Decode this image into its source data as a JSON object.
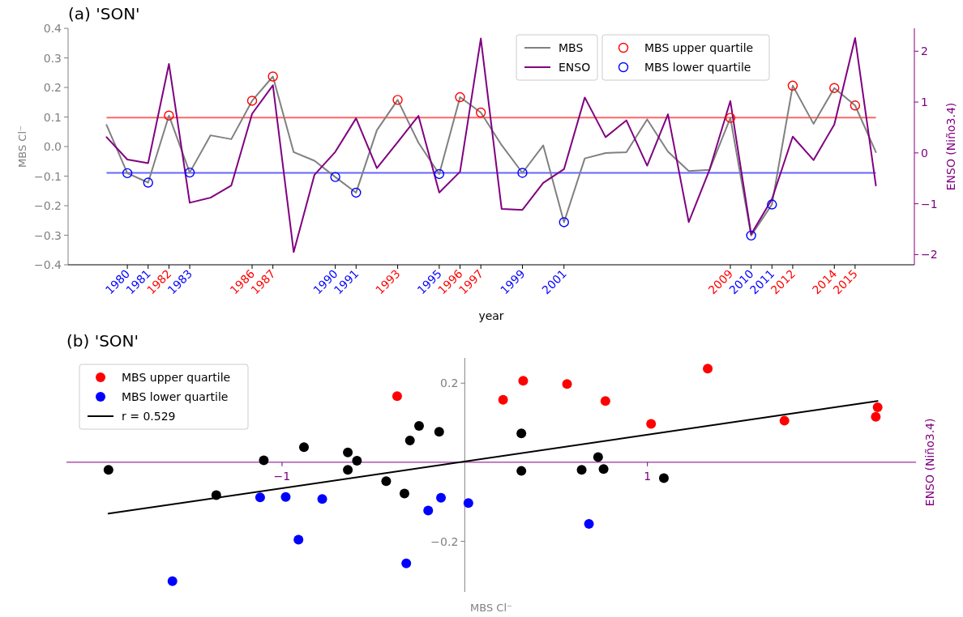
{
  "chart_data": [
    {
      "type": "line",
      "title": "(a) 'SON'",
      "xlabel": "year",
      "ylabel": "MBS Cl⁻",
      "y2label": "ENSO (Niño3.4)",
      "legend": "top",
      "x": [
        1979,
        1980,
        1981,
        1982,
        1983,
        1984,
        1985,
        1986,
        1987,
        1988,
        1989,
        1990,
        1991,
        1992,
        1993,
        1994,
        1995,
        1996,
        1997,
        1998,
        1999,
        2000,
        2001,
        2002,
        2003,
        2004,
        2005,
        2006,
        2007,
        2008,
        2009,
        2010,
        2011,
        2012,
        2013,
        2014,
        2015,
        2016
      ],
      "xlim": [
        1977.15,
        2017.85
      ],
      "xticks": [
        1980,
        1981,
        1982,
        1983,
        1986,
        1987,
        1990,
        1991,
        1993,
        1995,
        1996,
        1997,
        1999,
        2001,
        2009,
        2010,
        2011,
        2012,
        2014,
        2015
      ],
      "ylim": [
        -0.4,
        0.4
      ],
      "yticks": [
        {
          "value": -0.4,
          "label": "−0.4"
        },
        {
          "value": -0.3,
          "label": "−0.3"
        },
        {
          "value": -0.2,
          "label": "−0.2"
        },
        {
          "value": -0.1,
          "label": "−0.1"
        },
        {
          "value": 0,
          "label": "0.0"
        },
        {
          "value": 0.1,
          "label": "0.1"
        },
        {
          "value": 0.2,
          "label": "0.2"
        },
        {
          "value": 0.3,
          "label": "0.3"
        },
        {
          "value": 0.4,
          "label": "0.4"
        }
      ],
      "y2lim": [
        -2.2,
        2.45
      ],
      "y2ticks": [
        {
          "value": -2,
          "label": "−2"
        },
        {
          "value": -1,
          "label": "−1"
        },
        0,
        1,
        2
      ],
      "ref_lines": [
        {
          "axis": "y",
          "value": 0.098,
          "color": "#ff6666"
        },
        {
          "axis": "y",
          "value": -0.089,
          "color": "#6666ff"
        }
      ],
      "series": [
        {
          "name": "MBS",
          "color": "#808080",
          "values": [
            0.073,
            -0.09,
            -0.122,
            0.105,
            -0.088,
            0.038,
            0.025,
            0.155,
            0.237,
            -0.019,
            -0.048,
            -0.103,
            -0.156,
            0.055,
            0.158,
            0.013,
            -0.093,
            0.167,
            0.115,
            0.005,
            -0.089,
            0.004,
            -0.256,
            -0.04,
            -0.022,
            -0.019,
            0.092,
            -0.017,
            -0.083,
            -0.079,
            0.097,
            -0.301,
            -0.196,
            0.206,
            0.077,
            0.198,
            0.139,
            -0.019
          ]
        },
        {
          "name": "ENSO",
          "color": "#800080",
          "axis": "y2",
          "values": [
            0.31,
            -0.13,
            -0.2,
            1.75,
            -0.98,
            -0.88,
            -0.64,
            0.77,
            1.33,
            -1.95,
            -0.43,
            0.02,
            0.68,
            -0.3,
            0.21,
            0.73,
            -0.78,
            -0.37,
            2.25,
            -1.1,
            -1.12,
            -0.59,
            -0.32,
            1.09,
            0.31,
            0.64,
            -0.25,
            0.76,
            -1.36,
            -0.33,
            1.02,
            -1.6,
            -0.91,
            0.32,
            -0.14,
            0.56,
            2.26,
            -0.64
          ]
        },
        {
          "name": "MBS upper quartile",
          "type": "scatter",
          "marker": "circle",
          "color": "#ff0000",
          "x": [
            1982,
            1986,
            1987,
            1993,
            1996,
            1997,
            2009,
            2012,
            2014,
            2015
          ],
          "values": [
            0.105,
            0.155,
            0.237,
            0.158,
            0.167,
            0.115,
            0.097,
            0.206,
            0.198,
            0.139
          ]
        },
        {
          "name": "MBS lower quartile",
          "type": "scatter",
          "marker": "circle",
          "color": "#0000ff",
          "x": [
            1980,
            1981,
            1983,
            1990,
            1991,
            1995,
            1999,
            2001,
            2010,
            2011
          ],
          "values": [
            -0.09,
            -0.122,
            -0.088,
            -0.103,
            -0.156,
            -0.093,
            -0.089,
            -0.256,
            -0.301,
            -0.196
          ]
        }
      ]
    },
    {
      "type": "scatter",
      "title": "(b) 'SON'",
      "xlabel": "MBS Cl⁻",
      "ylabel": "ENSO (Niño3.4)",
      "legend": "top left",
      "xlim": [
        -2.18,
        2.47
      ],
      "xticks": [
        {
          "value": -1,
          "label": "−1"
        },
        1
      ],
      "ylim": [
        -0.328,
        0.264
      ],
      "yticks": [
        {
          "value": -0.2,
          "label": "−0.2"
        },
        0.2
      ],
      "series": [
        {
          "color": "#000000",
          "marker": "circle",
          "x": [
            0.31,
            -0.88,
            -0.64,
            -1.95,
            -0.43,
            -0.3,
            0.73,
            -1.1,
            -0.59,
            1.09,
            0.31,
            0.64,
            -0.25,
            0.76,
            -1.36,
            -0.33,
            -0.14,
            -0.64
          ],
          "values": [
            0.073,
            0.038,
            0.025,
            -0.019,
            -0.048,
            0.055,
            0.013,
            0.005,
            0.004,
            -0.04,
            -0.022,
            -0.019,
            0.092,
            -0.017,
            -0.083,
            -0.079,
            0.077,
            -0.019
          ]
        },
        {
          "name": "MBS upper quartile",
          "marker": "circle",
          "color": "#ff0000",
          "x": [
            1.75,
            0.77,
            1.33,
            0.21,
            -0.37,
            2.25,
            1.02,
            0.32,
            0.56,
            2.26
          ],
          "values": [
            0.105,
            0.155,
            0.237,
            0.158,
            0.167,
            0.115,
            0.097,
            0.206,
            0.198,
            0.139
          ]
        },
        {
          "name": "MBS lower quartile",
          "marker": "circle",
          "color": "#0000ff",
          "x": [
            -0.13,
            -0.2,
            -0.98,
            0.02,
            0.68,
            -0.78,
            -1.12,
            -0.32,
            -1.6,
            -0.91
          ],
          "values": [
            -0.09,
            -0.122,
            -0.088,
            -0.103,
            -0.156,
            -0.093,
            -0.089,
            -0.256,
            -0.301,
            -0.196
          ]
        },
        {
          "name": "r = 0.529",
          "type": "line",
          "color": "#000000",
          "x": [
            -1.95,
            2.26
          ],
          "values": [
            -0.13,
            0.155
          ]
        }
      ]
    }
  ]
}
